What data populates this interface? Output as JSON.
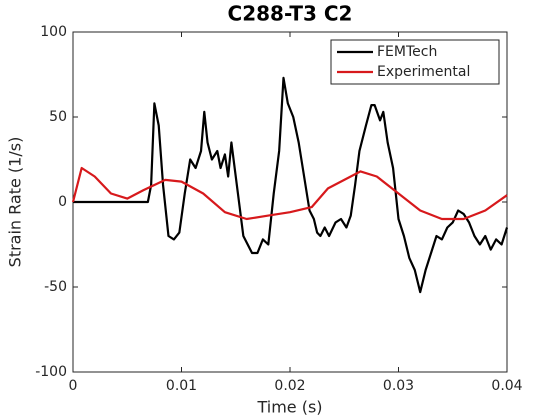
{
  "chart_data": {
    "type": "line",
    "title": "C288-T3 C2",
    "xlabel": "Time (s)",
    "ylabel": "Strain Rate (1/s)",
    "xlim": [
      0,
      0.04
    ],
    "ylim": [
      -100,
      100
    ],
    "xticks": [
      0,
      0.01,
      0.02,
      0.03,
      0.04
    ],
    "yticks": [
      -100,
      -50,
      0,
      50,
      100
    ],
    "grid": false,
    "legend": "northeast",
    "series": [
      {
        "name": "FEMTech",
        "color": "#000000",
        "x": [
          0,
          0.0069,
          0.0072,
          0.0075,
          0.0079,
          0.0083,
          0.0088,
          0.0093,
          0.0098,
          0.0103,
          0.0108,
          0.0113,
          0.0118,
          0.0121,
          0.0124,
          0.0128,
          0.0133,
          0.0136,
          0.014,
          0.0143,
          0.0146,
          0.0149,
          0.0152,
          0.0157,
          0.0165,
          0.017,
          0.0175,
          0.018,
          0.0185,
          0.019,
          0.0194,
          0.0198,
          0.0203,
          0.0208,
          0.0213,
          0.0218,
          0.0222,
          0.0225,
          0.0228,
          0.0232,
          0.0236,
          0.0242,
          0.0247,
          0.0252,
          0.0256,
          0.026,
          0.0264,
          0.027,
          0.0275,
          0.0278,
          0.0283,
          0.0286,
          0.029,
          0.0295,
          0.03,
          0.0305,
          0.031,
          0.0315,
          0.032,
          0.0325,
          0.033,
          0.0335,
          0.034,
          0.0345,
          0.035,
          0.0355,
          0.036,
          0.0365,
          0.037,
          0.0375,
          0.038,
          0.0385,
          0.039,
          0.0395,
          0.04
        ],
        "values": [
          0,
          0,
          10,
          58,
          45,
          10,
          -20,
          -22,
          -18,
          5,
          25,
          20,
          30,
          53,
          35,
          25,
          30,
          20,
          28,
          15,
          35,
          20,
          5,
          -20,
          -30,
          -30,
          -22,
          -25,
          5,
          30,
          73,
          58,
          50,
          35,
          15,
          -5,
          -10,
          -18,
          -20,
          -15,
          -20,
          -12,
          -10,
          -15,
          -8,
          10,
          30,
          45,
          57,
          57,
          48,
          53,
          35,
          20,
          -10,
          -20,
          -33,
          -40,
          -53,
          -40,
          -30,
          -20,
          -22,
          -15,
          -12,
          -5,
          -7,
          -12,
          -20,
          -25,
          -20,
          -28,
          -22,
          -25,
          -15
        ]
      },
      {
        "name": "Experimental",
        "color": "#d7191c",
        "x": [
          0,
          0.0008,
          0.002,
          0.0035,
          0.005,
          0.0065,
          0.0085,
          0.01,
          0.012,
          0.014,
          0.016,
          0.018,
          0.02,
          0.022,
          0.0235,
          0.0265,
          0.028,
          0.03,
          0.032,
          0.034,
          0.036,
          0.038,
          0.04
        ],
        "values": [
          0,
          20,
          15,
          5,
          2,
          7,
          13,
          12,
          5,
          -6,
          -10,
          -8,
          -6,
          -3,
          8,
          18,
          15,
          5,
          -5,
          -10,
          -10,
          -5,
          4
        ]
      }
    ]
  }
}
